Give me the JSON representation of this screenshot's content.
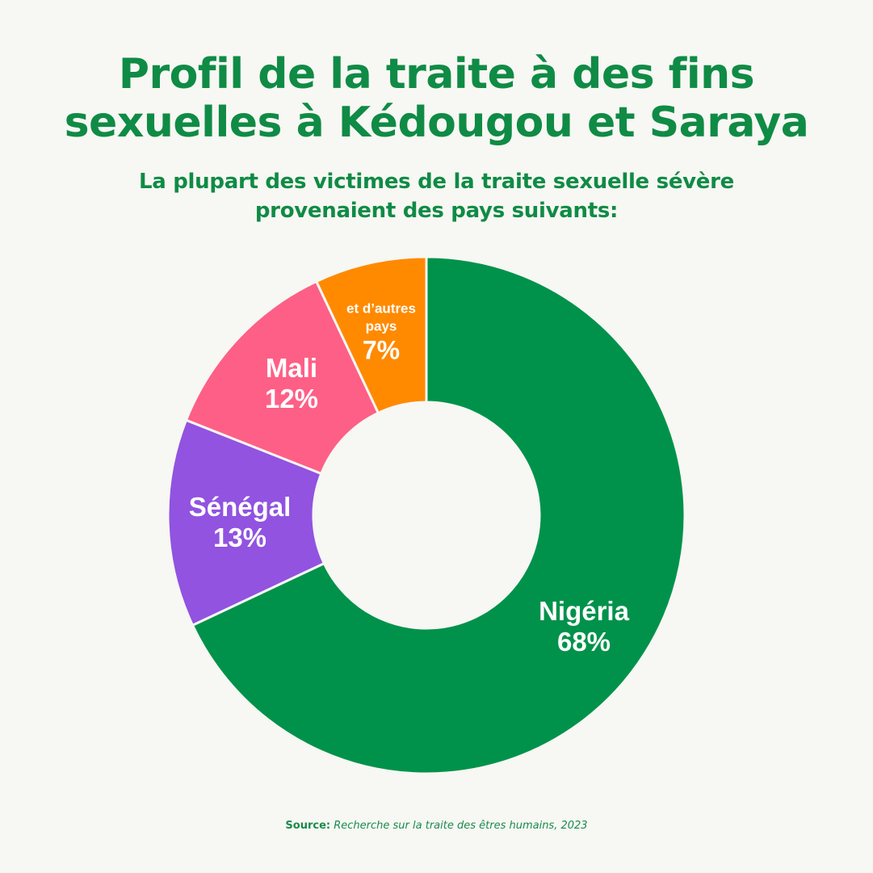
{
  "header": {
    "title_line1": "Profil de la traite à des fins",
    "title_line2": "sexuelles à Kédougou et Saraya",
    "subtitle_line1": "La plupart des victimes de la traite sexuelle sévère",
    "subtitle_line2": "provenaient des pays suivants:"
  },
  "footer": {
    "source_label": "Source:",
    "source_text": "Recherche sur la traite des êtres humains, 2023"
  },
  "colors": {
    "title": "#0f8b45",
    "background": "#f7f7f3"
  },
  "chart_data": {
    "type": "pie",
    "variant": "donut",
    "title": "Profil de la traite à des fins sexuelles à Kédougou et Saraya",
    "subtitle": "La plupart des victimes de la traite sexuelle sévère provenaient des pays suivants:",
    "categories": [
      "Nigéria",
      "Sénégal",
      "Mali",
      "et d’autres pays"
    ],
    "values": [
      68,
      13,
      12,
      7
    ],
    "unit": "%",
    "colors": [
      "#00924a",
      "#9153e0",
      "#fe5f86",
      "#ff8a00"
    ],
    "start_angle_deg": 0,
    "direction": "clockwise",
    "legend": "none (labels inside segments)",
    "source": "Source: Recherche sur la traite des êtres humains, 2023"
  },
  "labels": [
    {
      "name": "Nigéria",
      "pct": "68%"
    },
    {
      "name": "Sénégal",
      "pct": "13%"
    },
    {
      "name": "Mali",
      "pct": "12%"
    },
    {
      "name": "et d’autres pays",
      "pct": "7%"
    }
  ]
}
